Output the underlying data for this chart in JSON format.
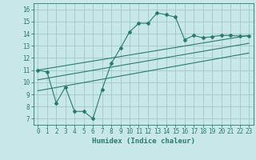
{
  "xlabel": "Humidex (Indice chaleur)",
  "bg_color": "#c8e8e8",
  "grid_color": "#a0c8c8",
  "line_color": "#2a7a6a",
  "xlim": [
    -0.5,
    23.5
  ],
  "ylim": [
    6.5,
    16.5
  ],
  "xticks": [
    0,
    1,
    2,
    3,
    4,
    5,
    6,
    7,
    8,
    9,
    10,
    11,
    12,
    13,
    14,
    15,
    16,
    17,
    18,
    19,
    20,
    21,
    22,
    23
  ],
  "yticks": [
    7,
    8,
    9,
    10,
    11,
    12,
    13,
    14,
    15,
    16
  ],
  "curve1_x": [
    0,
    1,
    2,
    3,
    4,
    5,
    6,
    7,
    8,
    9,
    10,
    11,
    12,
    13,
    14,
    15,
    16,
    17,
    18,
    19,
    20,
    21,
    22,
    23
  ],
  "curve1_y": [
    11.0,
    10.85,
    8.3,
    9.6,
    7.6,
    7.6,
    7.0,
    9.4,
    11.55,
    12.8,
    14.15,
    14.85,
    14.85,
    15.7,
    15.55,
    15.35,
    13.5,
    13.85,
    13.65,
    13.75,
    13.85,
    13.85,
    13.8,
    13.8
  ],
  "line2_x": [
    0,
    23
  ],
  "line2_y": [
    11.0,
    13.85
  ],
  "line3_x": [
    0,
    23
  ],
  "line3_y": [
    10.2,
    13.2
  ],
  "line4_x": [
    0,
    23
  ],
  "line4_y": [
    9.3,
    12.4
  ]
}
